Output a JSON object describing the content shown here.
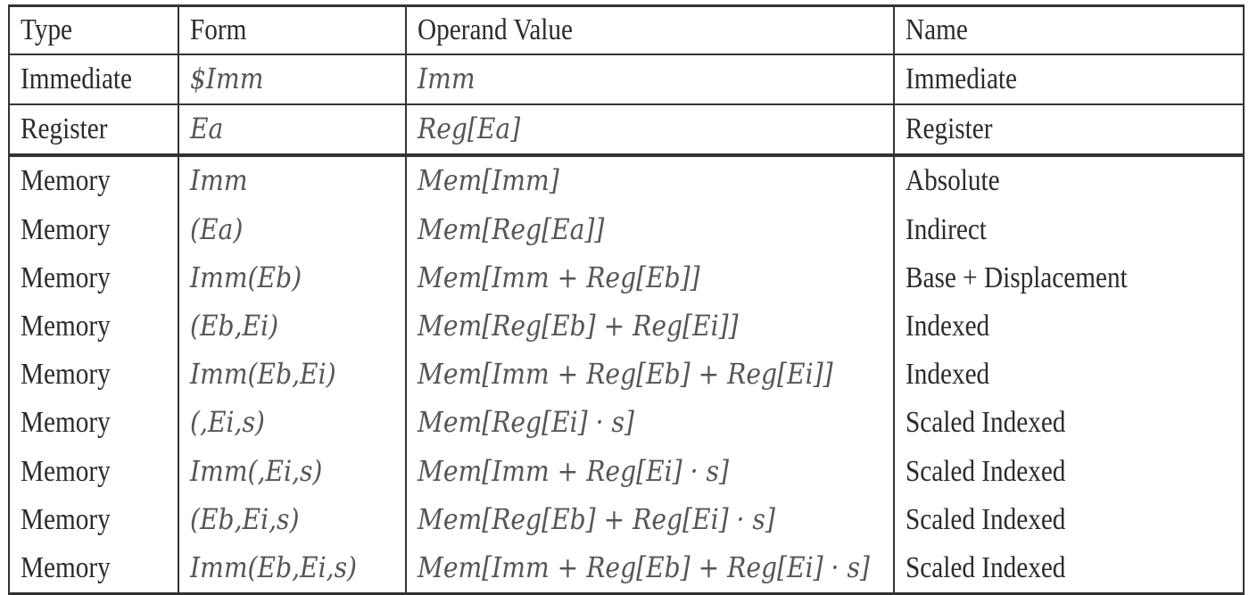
{
  "table": {
    "headers": {
      "type": "Type",
      "form": "Form",
      "operand_value": "Operand Value",
      "name": "Name"
    },
    "rows": [
      {
        "type": "Immediate",
        "form": "$Imm",
        "operand_value": "Imm",
        "name": "Immediate"
      },
      {
        "type": "Register",
        "form": "Ea",
        "operand_value": "Reg[Ea]",
        "name": "Register"
      },
      {
        "type": "Memory",
        "form": "Imm",
        "operand_value": "Mem[Imm]",
        "name": "Absolute"
      },
      {
        "type": "Memory",
        "form": "(Ea)",
        "operand_value": "Mem[Reg[Ea]]",
        "name": "Indirect"
      },
      {
        "type": "Memory",
        "form": "Imm(Eb)",
        "operand_value": "Mem[Imm + Reg[Eb]]",
        "name": "Base + Displacement"
      },
      {
        "type": "Memory",
        "form": "(Eb,Ei)",
        "operand_value": "Mem[Reg[Eb] + Reg[Ei]]",
        "name": "Indexed"
      },
      {
        "type": "Memory",
        "form": "Imm(Eb,Ei)",
        "operand_value": "Mem[Imm + Reg[Eb] + Reg[Ei]]",
        "name": "Indexed"
      },
      {
        "type": "Memory",
        "form": "(,Ei,s)",
        "operand_value": "Mem[Reg[Ei] · s]",
        "name": "Scaled Indexed"
      },
      {
        "type": "Memory",
        "form": "Imm(,Ei,s)",
        "operand_value": "Mem[Imm + Reg[Ei] · s]",
        "name": "Scaled Indexed"
      },
      {
        "type": "Memory",
        "form": "(Eb,Ei,s)",
        "operand_value": "Mem[Reg[Eb] + Reg[Ei] · s]",
        "name": "Scaled Indexed"
      },
      {
        "type": "Memory",
        "form": "Imm(Eb,Ei,s)",
        "operand_value": "Mem[Imm + Reg[Eb] + Reg[Ei] · s]",
        "name": "Scaled Indexed"
      }
    ]
  }
}
